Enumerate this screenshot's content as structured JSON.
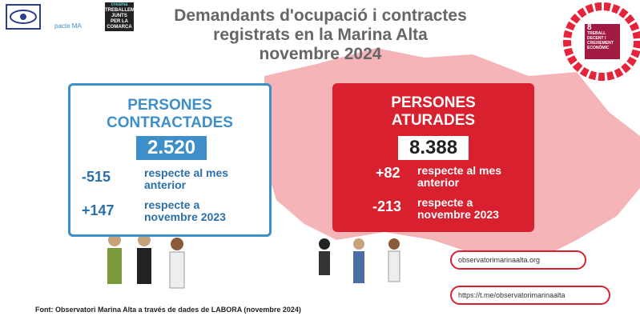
{
  "header": {
    "title": [
      "Demandants d'ocupació i contractes",
      "registrats en la Marina Alta",
      "novembre 2024"
    ]
  },
  "logos": {
    "pacte": "pacte MA",
    "creama": "creama",
    "treballem": [
      "TREBALLEM",
      "JUNTS",
      "PER LA COMARCA"
    ],
    "sdg": [
      "8",
      "TREBALL DECENT I CREIXEMENT ECONÒMIC"
    ]
  },
  "contracted": {
    "title": [
      "PERSONES",
      "CONTRACTADES"
    ],
    "total": "2.520",
    "rows": [
      {
        "delta": "-515",
        "label": [
          "respecte al mes",
          "anterior"
        ]
      },
      {
        "delta": "+147",
        "label": [
          "respecte a",
          "novembre 2023"
        ]
      }
    ]
  },
  "unemployed": {
    "title": [
      "PERSONES",
      "ATURADES"
    ],
    "total": "8.388",
    "rows": [
      {
        "delta": "+82",
        "label": [
          "respecte al mes",
          "anterior"
        ]
      },
      {
        "delta": "-213",
        "label": [
          "respecte a",
          "novembre 2023"
        ]
      }
    ]
  },
  "links": [
    "observatorimarinaalta.org",
    "https://t.me/observatorimarinaalta"
  ],
  "source": "Font: Observatori Marina Alta a través de dades de LABORA (novembre 2024)"
}
